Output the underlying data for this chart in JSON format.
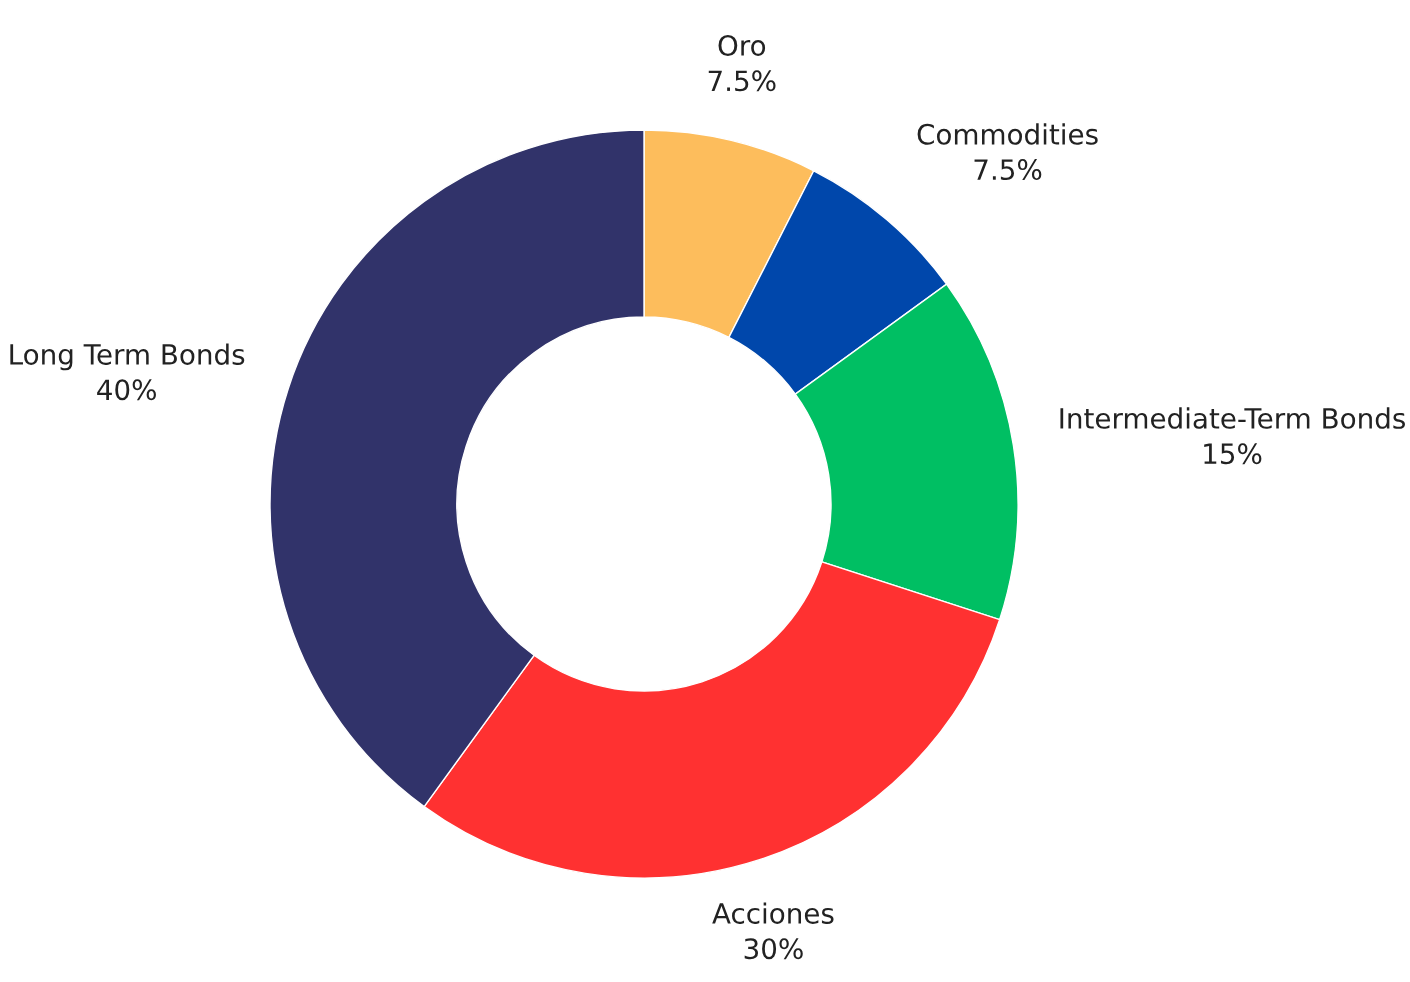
{
  "chart_data": {
    "type": "donut",
    "categories": [
      "Oro",
      "Commodities",
      "Intermediate-Term Bonds",
      "Acciones",
      "Long Term Bonds"
    ],
    "values": [
      7.5,
      7.5,
      15,
      30,
      40
    ],
    "value_labels": [
      "7.5%",
      "7.5%",
      "15%",
      "30%",
      "40%"
    ],
    "colors": [
      "#fdbd5c",
      "#0047ab",
      "#00bf63",
      "#ff3131",
      "#31336a"
    ]
  }
}
